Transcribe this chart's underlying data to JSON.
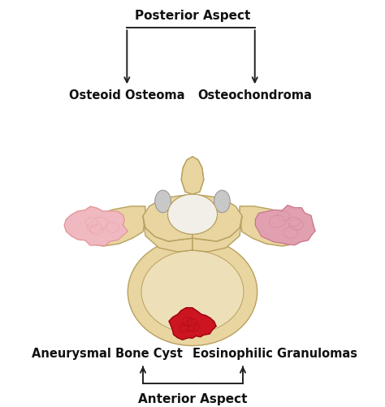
{
  "background_color": "#ffffff",
  "labels": {
    "posterior": "Posterior Aspect",
    "anterior": "Anterior Aspect",
    "osteoid": "Osteoid Osteoma",
    "osteochondroma": "Osteochondroma",
    "aneurysmal": "Aneurysmal Bone Cyst",
    "eosinophilic": "Eosinophilic Granulomas"
  },
  "label_fontsize": 10.5,
  "bone_fill": "#e8d5a0",
  "bone_fill2": "#dfc98a",
  "bone_edge": "#b8a060",
  "bone_shadow": "#c8b87a",
  "foramen_fill": "#f0ede0",
  "facet_fill": "#c8c8c8",
  "facet_edge": "#999999",
  "tumor_pink_light": "#f0b8c0",
  "tumor_pink_mid": "#e09090",
  "tumor_pink_dark": "#c87080",
  "tumor_red": "#cc1520",
  "tumor_red_dark": "#8a0010",
  "arrow_color": "#222222",
  "text_color": "#111111"
}
